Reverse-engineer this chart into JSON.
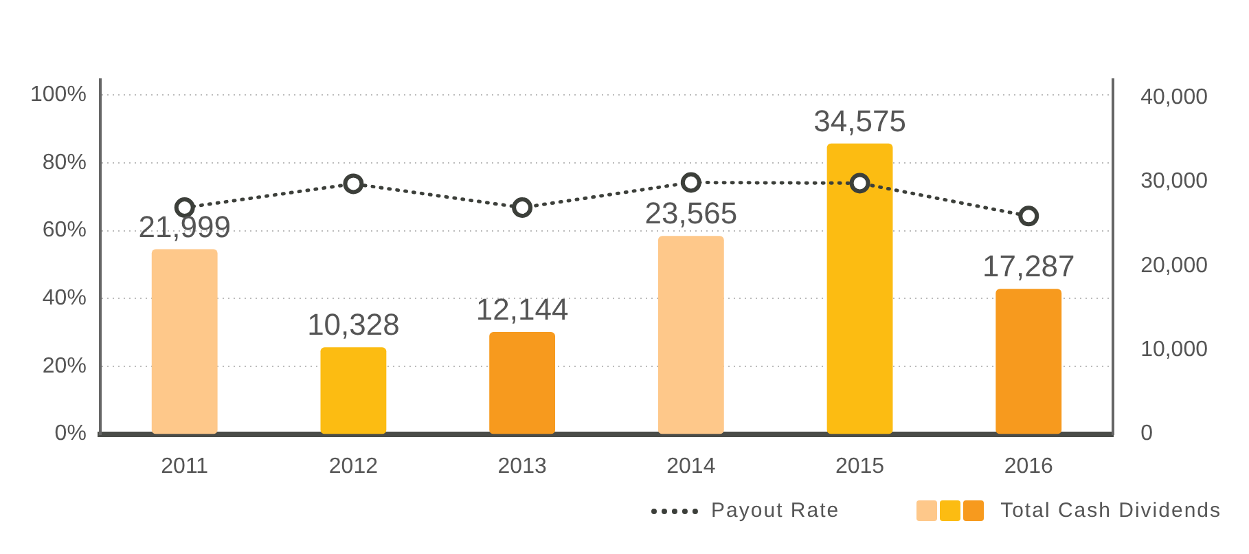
{
  "chart_data": {
    "type": "bar",
    "categories": [
      "2011",
      "2012",
      "2013",
      "2014",
      "2015",
      "2016"
    ],
    "series": [
      {
        "name": "Payout Rate",
        "type": "line",
        "color": "#3c3f3a",
        "line_style": "dotted",
        "marker": "circle",
        "values": [
          66.8,
          73.8,
          66.8,
          74.2,
          74,
          64.3
        ]
      },
      {
        "name": "Total Cash Dividends",
        "axis": "y2",
        "colors": [
          "#fec88a",
          "#fcbc12",
          "#f79a1e",
          "#fec88a",
          "#fcbc12",
          "#f79a1e"
        ],
        "values": [
          21999,
          10328,
          12144,
          23565,
          34575,
          17287
        ],
        "value_labels": [
          "21,999",
          "10,328",
          "12,144",
          "23,565",
          "34,575",
          "17,287"
        ]
      }
    ],
    "ylim": [
      0,
      104.5
    ],
    "yticks": [
      {
        "value": 0,
        "label": "0%"
      },
      {
        "value": 20,
        "label": "20%"
      },
      {
        "value": 40,
        "label": "40%"
      },
      {
        "value": 60,
        "label": "60%"
      },
      {
        "value": 80,
        "label": "80%"
      },
      {
        "value": 100,
        "label": "100%"
      }
    ],
    "y2lim": [
      0,
      42150
    ],
    "y2ticks": [
      0,
      {
        "value": 10000,
        "label": "10,000"
      },
      {
        "value": 20000,
        "label": "20,000"
      },
      {
        "value": 30000,
        "label": "30,000"
      },
      {
        "value": 40000,
        "label": "40,000"
      }
    ],
    "grid": "y",
    "legend": "bottom right"
  }
}
